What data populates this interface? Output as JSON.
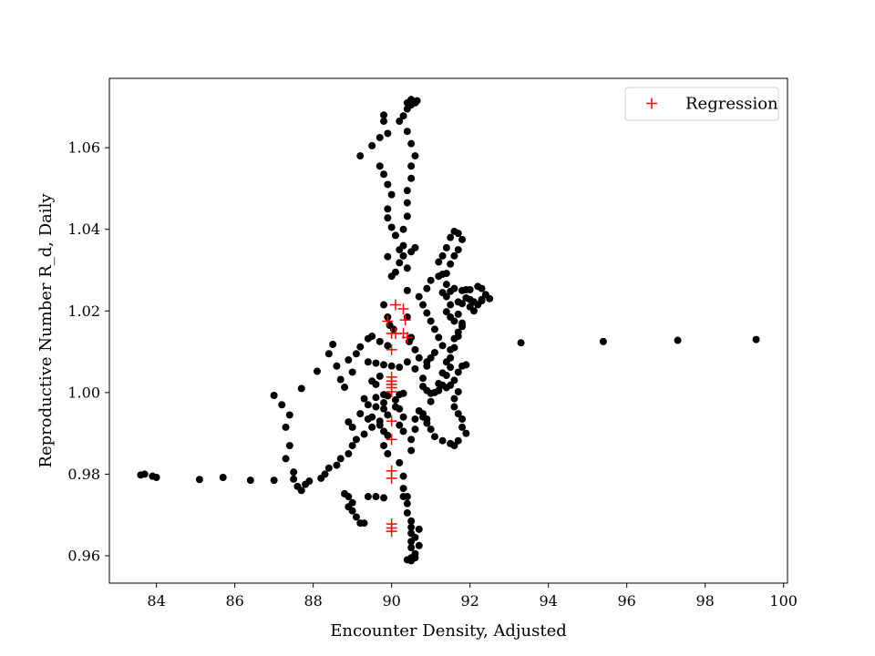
{
  "chart_data": {
    "type": "scatter",
    "title": "",
    "xlabel": "Encounter Density, Adjusted",
    "ylabel": "Reproductive Number R_d, Daily",
    "xlim": [
      82.8,
      100.1
    ],
    "ylim": [
      0.9533,
      1.077
    ],
    "xticks": [
      84,
      86,
      88,
      90,
      92,
      94,
      96,
      98,
      100
    ],
    "yticks": [
      0.96,
      0.98,
      1.0,
      1.02,
      1.04,
      1.06
    ],
    "grid": false,
    "legend_position": "top-right",
    "legend": [
      {
        "label": "Regression",
        "marker": "plus",
        "color": "#ff0000"
      }
    ],
    "series": [
      {
        "marker": "dot",
        "color": "#000000",
        "points": [
          [
            83.6,
            0.9798
          ],
          [
            83.7,
            0.98
          ],
          [
            83.9,
            0.9795
          ],
          [
            84.0,
            0.9792
          ],
          [
            85.1,
            0.9787
          ],
          [
            85.7,
            0.9792
          ],
          [
            86.4,
            0.9785
          ],
          [
            87.0,
            0.9785
          ],
          [
            87.5,
            0.9788
          ],
          [
            87.6,
            0.977
          ],
          [
            87.7,
            0.976
          ],
          [
            87.8,
            0.9775
          ],
          [
            87.9,
            0.9783
          ],
          [
            87.5,
            0.9805
          ],
          [
            87.3,
            0.9838
          ],
          [
            87.4,
            0.987
          ],
          [
            87.3,
            0.9915
          ],
          [
            87.4,
            0.9945
          ],
          [
            87.2,
            0.997
          ],
          [
            87.0,
            0.9993
          ],
          [
            87.7,
            1.001
          ],
          [
            88.1,
            1.0052
          ],
          [
            88.4,
            1.0095
          ],
          [
            88.5,
            1.0118
          ],
          [
            88.6,
            1.0065
          ],
          [
            88.7,
            1.0032
          ],
          [
            88.8,
            1.0013
          ],
          [
            88.9,
            1.008
          ],
          [
            89.0,
            1.005
          ],
          [
            89.1,
            1.0095
          ],
          [
            89.2,
            1.0112
          ],
          [
            89.4,
            1.0132
          ],
          [
            89.5,
            1.0138
          ],
          [
            89.7,
            1.0125
          ],
          [
            89.9,
            1.0115
          ],
          [
            89.2,
            1.058
          ],
          [
            89.5,
            1.0605
          ],
          [
            89.7,
            1.0625
          ],
          [
            89.8,
            1.068
          ],
          [
            89.8,
            1.0665
          ],
          [
            89.9,
            1.0635
          ],
          [
            89.7,
            1.0555
          ],
          [
            89.8,
            1.0535
          ],
          [
            89.9,
            1.051
          ],
          [
            90.0,
            1.0485
          ],
          [
            89.9,
            1.045
          ],
          [
            89.9,
            1.0428
          ],
          [
            90.0,
            1.0405
          ],
          [
            90.1,
            1.0385
          ],
          [
            90.2,
            1.035
          ],
          [
            89.9,
            1.0333
          ],
          [
            90.2,
            1.0318
          ],
          [
            90.1,
            1.0295
          ],
          [
            90.0,
            1.0285
          ],
          [
            90.3,
            1.036
          ],
          [
            90.3,
            1.04
          ],
          [
            90.4,
            1.0432
          ],
          [
            90.4,
            1.0465
          ],
          [
            90.4,
            1.0495
          ],
          [
            90.5,
            1.0525
          ],
          [
            90.5,
            1.0555
          ],
          [
            90.6,
            1.058
          ],
          [
            90.5,
            1.061
          ],
          [
            90.4,
            1.064
          ],
          [
            90.3,
            1.0678
          ],
          [
            90.4,
            1.0695
          ],
          [
            90.5,
            1.0705
          ],
          [
            90.6,
            1.071
          ],
          [
            90.65,
            1.0715
          ],
          [
            90.5,
            1.0718
          ],
          [
            90.4,
            1.071
          ],
          [
            90.2,
            1.0665
          ],
          [
            90.3,
            1.0335
          ],
          [
            90.5,
            1.0345
          ],
          [
            90.6,
            1.0355
          ],
          [
            90.4,
            1.0305
          ],
          [
            90.4,
            1.025
          ],
          [
            90.4,
            1.0185
          ],
          [
            90.5,
            1.0135
          ],
          [
            90.6,
            1.0105
          ],
          [
            90.7,
            1.0085
          ],
          [
            90.9,
            1.0075
          ],
          [
            90.0,
            1.0065
          ],
          [
            90.2,
            1.0062
          ],
          [
            90.4,
            1.0075
          ],
          [
            90.6,
            1.0058
          ],
          [
            89.4,
            1.0075
          ],
          [
            89.6,
            1.0072
          ],
          [
            89.8,
            1.0068
          ],
          [
            89.5,
            1.0028
          ],
          [
            89.3,
            0.9985
          ],
          [
            89.4,
            0.997
          ],
          [
            89.6,
            0.9988
          ],
          [
            89.8,
            0.9975
          ],
          [
            89.9,
            0.9992
          ],
          [
            89.8,
            0.996
          ],
          [
            89.9,
            0.9945
          ],
          [
            89.7,
            0.993
          ],
          [
            89.5,
            0.9915
          ],
          [
            89.3,
            0.9898
          ],
          [
            89.1,
            0.9885
          ],
          [
            89.0,
            0.987
          ],
          [
            88.9,
            0.985
          ],
          [
            88.7,
            0.9838
          ],
          [
            88.6,
            0.9822
          ],
          [
            88.4,
            0.9815
          ],
          [
            88.3,
            0.98
          ],
          [
            88.2,
            0.979
          ],
          [
            88.8,
            0.9752
          ],
          [
            88.9,
            0.9745
          ],
          [
            89.0,
            0.973
          ],
          [
            88.9,
            0.972
          ],
          [
            89.0,
            0.971
          ],
          [
            89.1,
            0.9695
          ],
          [
            89.2,
            0.968
          ],
          [
            89.3,
            0.968
          ],
          [
            89.4,
            0.9745
          ],
          [
            89.6,
            0.9745
          ],
          [
            89.8,
            0.9742
          ],
          [
            89.7,
            0.992
          ],
          [
            89.8,
            0.9905
          ],
          [
            89.9,
            0.9895
          ],
          [
            89.8,
            0.987
          ],
          [
            89.9,
            0.985
          ],
          [
            90.2,
            0.9828
          ],
          [
            90.3,
            0.9795
          ],
          [
            90.3,
            0.9765
          ],
          [
            90.3,
            0.9745
          ],
          [
            90.4,
            0.9745
          ],
          [
            90.4,
            0.9728
          ],
          [
            90.4,
            0.9705
          ],
          [
            90.5,
            0.9685
          ],
          [
            90.5,
            0.967
          ],
          [
            90.5,
            0.9655
          ],
          [
            90.5,
            0.9635
          ],
          [
            90.5,
            0.962
          ],
          [
            90.6,
            0.9605
          ],
          [
            90.5,
            0.9595
          ],
          [
            90.4,
            0.959
          ],
          [
            90.5,
            0.9588
          ],
          [
            90.6,
            0.9595
          ],
          [
            90.7,
            0.9625
          ],
          [
            90.6,
            0.9645
          ],
          [
            90.7,
            0.9665
          ],
          [
            90.5,
            0.9858
          ],
          [
            90.5,
            0.9885
          ],
          [
            90.6,
            0.991
          ],
          [
            90.6,
            0.9935
          ],
          [
            90.7,
            0.9955
          ],
          [
            90.8,
            0.9948
          ],
          [
            90.9,
            0.9935
          ],
          [
            91.0,
            0.9978
          ],
          [
            91.1,
            1.0
          ],
          [
            91.2,
            1.0022
          ],
          [
            91.3,
            1.0048
          ],
          [
            91.4,
            1.0075
          ],
          [
            91.5,
            1.0105
          ],
          [
            91.6,
            1.0132
          ],
          [
            91.7,
            1.0148
          ],
          [
            91.8,
            1.0162
          ],
          [
            91.6,
            1.0175
          ],
          [
            91.5,
            1.0185
          ],
          [
            91.4,
            1.0198
          ],
          [
            91.5,
            1.0215
          ],
          [
            91.7,
            1.0222
          ],
          [
            91.9,
            1.0232
          ],
          [
            92.0,
            1.0228
          ],
          [
            92.1,
            1.0222
          ],
          [
            92.3,
            1.0225
          ],
          [
            92.5,
            1.023
          ],
          [
            92.4,
            1.024
          ],
          [
            92.3,
            1.0255
          ],
          [
            92.2,
            1.026
          ],
          [
            92.0,
            1.0252
          ],
          [
            91.8,
            1.025
          ],
          [
            91.6,
            1.0255
          ],
          [
            91.5,
            1.0248
          ],
          [
            91.4,
            1.0235
          ],
          [
            91.3,
            1.0245
          ],
          [
            91.4,
            1.0265
          ],
          [
            91.3,
            1.029
          ],
          [
            91.2,
            1.032
          ],
          [
            91.3,
            1.0335
          ],
          [
            91.4,
            1.0355
          ],
          [
            91.5,
            1.038
          ],
          [
            91.6,
            1.0395
          ],
          [
            91.7,
            1.039
          ],
          [
            91.8,
            1.0375
          ],
          [
            91.7,
            1.035
          ],
          [
            91.6,
            1.0335
          ],
          [
            91.5,
            1.0315
          ],
          [
            91.4,
            1.0292
          ],
          [
            91.2,
            1.0285
          ],
          [
            91.0,
            1.0275
          ],
          [
            90.9,
            1.0255
          ],
          [
            90.7,
            1.0235
          ],
          [
            90.8,
            1.0215
          ],
          [
            90.9,
            1.0195
          ],
          [
            91.0,
            1.0175
          ],
          [
            91.1,
            1.0155
          ],
          [
            91.2,
            1.0135
          ],
          [
            91.3,
            1.0115
          ],
          [
            91.1,
            1.0098
          ],
          [
            91.0,
            1.0085
          ],
          [
            90.9,
            1.0065
          ],
          [
            90.8,
            1.0035
          ],
          [
            90.8,
            1.0015
          ],
          [
            90.9,
            1.0005
          ],
          [
            91.0,
            0.9998
          ],
          [
            91.2,
            1.0005
          ],
          [
            91.4,
            1.0012
          ],
          [
            91.5,
            1.0018
          ],
          [
            91.6,
            1.003
          ],
          [
            91.7,
            1.005
          ],
          [
            91.8,
            1.0065
          ],
          [
            91.9,
            1.0068
          ],
          [
            91.7,
            1.0002
          ],
          [
            91.6,
            0.9985
          ],
          [
            91.6,
            0.9965
          ],
          [
            91.7,
            0.9948
          ],
          [
            91.8,
            0.9935
          ],
          [
            91.8,
            0.9915
          ],
          [
            91.9,
            0.99
          ],
          [
            91.7,
            0.9882
          ],
          [
            91.6,
            0.987
          ],
          [
            91.5,
            0.9875
          ],
          [
            91.3,
            0.9882
          ],
          [
            91.1,
            0.9892
          ],
          [
            91.0,
            0.991
          ],
          [
            90.9,
            0.9925
          ],
          [
            90.8,
            0.994
          ],
          [
            91.3,
            1.0018
          ],
          [
            91.4,
            1.0042
          ],
          [
            91.5,
            1.0062
          ],
          [
            91.5,
            1.0085
          ],
          [
            91.6,
            1.011
          ],
          [
            91.7,
            1.0138
          ],
          [
            91.8,
            1.017
          ],
          [
            91.7,
            1.0192
          ],
          [
            91.8,
            1.0218
          ],
          [
            91.9,
            1.0252
          ],
          [
            92.0,
            1.021
          ],
          [
            92.1,
            1.02
          ],
          [
            92.2,
            1.0215
          ],
          [
            92.3,
            1.0228
          ],
          [
            89.6,
            1.002
          ],
          [
            89.7,
            1.004
          ],
          [
            89.8,
            0.9995
          ],
          [
            89.6,
            0.9965
          ],
          [
            89.5,
            0.994
          ],
          [
            89.4,
            0.9935
          ],
          [
            89.2,
            0.9948
          ],
          [
            89.0,
            0.9915
          ],
          [
            88.9,
            0.9928
          ],
          [
            90.1,
            0.9982
          ],
          [
            90.2,
            0.9995
          ],
          [
            90.3,
            0.9998
          ],
          [
            90.2,
            0.996
          ],
          [
            90.3,
            0.994
          ],
          [
            90.2,
            0.992
          ],
          [
            90.3,
            0.9905
          ],
          [
            90.1,
            0.9965
          ],
          [
            89.95,
            1.0165
          ],
          [
            90.05,
            1.0155
          ],
          [
            89.9,
            1.0185
          ],
          [
            89.8,
            1.0215
          ],
          [
            90.45,
            1.0125
          ],
          [
            93.3,
            1.0122
          ],
          [
            95.4,
            1.0125
          ],
          [
            97.3,
            1.0128
          ],
          [
            99.3,
            1.013
          ]
        ]
      },
      {
        "name": "Regression",
        "marker": "plus",
        "color": "#ff0000",
        "points": [
          [
            89.9,
            1.0175
          ],
          [
            90.0,
            1.0145
          ],
          [
            90.1,
            1.0145
          ],
          [
            90.1,
            1.0215
          ],
          [
            90.3,
            1.0205
          ],
          [
            90.35,
            1.0178
          ],
          [
            90.3,
            1.0145
          ],
          [
            90.4,
            1.0135
          ],
          [
            90.0,
            1.0105
          ],
          [
            90.0,
            1.0038
          ],
          [
            90.0,
            1.0028
          ],
          [
            90.0,
            1.002
          ],
          [
            90.0,
            1.0012
          ],
          [
            90.0,
            1.0002
          ],
          [
            90.0,
            0.993
          ],
          [
            90.0,
            0.9885
          ],
          [
            90.0,
            0.9808
          ],
          [
            90.0,
            0.979
          ],
          [
            90.0,
            0.9678
          ],
          [
            90.0,
            0.9668
          ],
          [
            90.0,
            0.966
          ]
        ]
      }
    ]
  }
}
